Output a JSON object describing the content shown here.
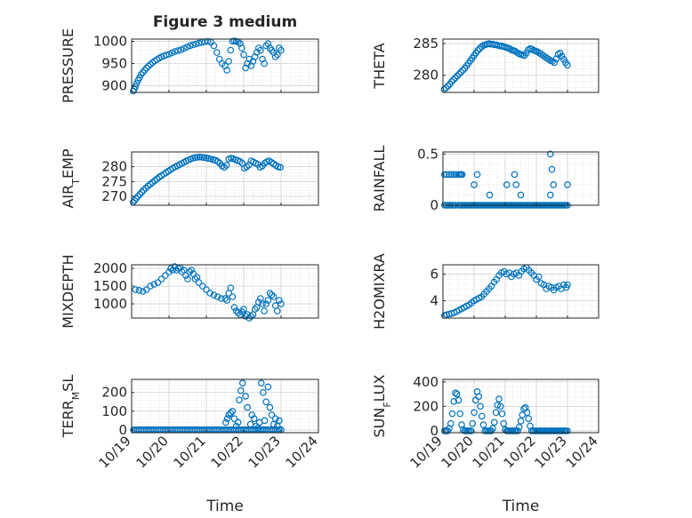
{
  "chart_data": [
    {
      "type": "scatter",
      "title": "Figure 3 medium",
      "ylabel": [
        "PRESSURE"
      ],
      "xlabel": "",
      "xlim": [
        0,
        5
      ],
      "ylim": [
        885,
        1005
      ],
      "yticks": [
        900,
        950,
        1000
      ],
      "xticks": [],
      "grid": true,
      "x": [
        0.04,
        0.07,
        0.1,
        0.13,
        0.17,
        0.21,
        0.25,
        0.3,
        0.35,
        0.4,
        0.45,
        0.5,
        0.56,
        0.62,
        0.68,
        0.74,
        0.8,
        0.86,
        0.92,
        1.0,
        1.08,
        1.16,
        1.24,
        1.32,
        1.4,
        1.48,
        1.56,
        1.64,
        1.72,
        1.8,
        1.88,
        1.96,
        2.04,
        2.12,
        2.2,
        2.28,
        2.35,
        2.42,
        2.5,
        2.55,
        2.6,
        2.65,
        2.7,
        2.75,
        2.8,
        2.85,
        2.9,
        2.95,
        3.0,
        3.05,
        3.1,
        3.15,
        3.2,
        3.25,
        3.3,
        3.35,
        3.4,
        3.45,
        3.5,
        3.55,
        3.6,
        3.65,
        3.7,
        3.75,
        3.8,
        3.85,
        3.9,
        3.95,
        4.0
      ],
      "y": [
        888,
        892,
        898,
        905,
        912,
        918,
        925,
        930,
        935,
        940,
        944,
        948,
        952,
        956,
        959,
        962,
        965,
        967,
        969,
        971,
        974,
        977,
        979,
        981,
        984,
        987,
        990,
        992,
        994,
        996,
        998,
        999,
        1000,
        998,
        990,
        975,
        960,
        950,
        945,
        935,
        955,
        980,
        1000,
        1001,
        1000,
        999,
        995,
        985,
        970,
        940,
        950,
        960,
        945,
        955,
        965,
        975,
        985,
        980,
        960,
        950,
        990,
        995,
        985,
        980,
        975,
        965,
        970,
        985,
        980
      ]
    },
    {
      "type": "scatter",
      "title": "",
      "ylabel": [
        "THETA"
      ],
      "xlabel": "",
      "xlim": [
        0,
        5
      ],
      "ylim": [
        277.3,
        285.7
      ],
      "yticks": [
        280,
        285
      ],
      "xticks": [],
      "grid": true,
      "x": [
        0.04,
        0.1,
        0.16,
        0.22,
        0.28,
        0.34,
        0.4,
        0.46,
        0.52,
        0.58,
        0.64,
        0.7,
        0.76,
        0.82,
        0.88,
        0.94,
        1.0,
        1.06,
        1.12,
        1.18,
        1.24,
        1.3,
        1.36,
        1.42,
        1.48,
        1.54,
        1.6,
        1.66,
        1.72,
        1.78,
        1.84,
        1.9,
        1.96,
        2.02,
        2.08,
        2.14,
        2.2,
        2.26,
        2.32,
        2.38,
        2.44,
        2.5,
        2.56,
        2.62,
        2.68,
        2.74,
        2.8,
        2.86,
        2.92,
        2.98,
        3.04,
        3.1,
        3.16,
        3.22,
        3.28,
        3.34,
        3.4,
        3.46,
        3.52,
        3.58,
        3.64,
        3.7,
        3.76,
        3.82,
        3.88,
        3.94,
        4.0
      ],
      "y": [
        277.8,
        278.0,
        278.3,
        278.6,
        279.0,
        279.3,
        279.6,
        279.9,
        280.2,
        280.5,
        280.8,
        281.1,
        281.5,
        281.9,
        282.3,
        282.7,
        283.1,
        283.5,
        283.9,
        284.2,
        284.5,
        284.7,
        284.8,
        284.9,
        285.0,
        284.9,
        284.9,
        284.8,
        284.8,
        284.7,
        284.6,
        284.6,
        284.5,
        284.4,
        284.3,
        284.2,
        284.0,
        283.9,
        283.8,
        283.6,
        283.4,
        283.3,
        283.2,
        283.1,
        283.5,
        284.0,
        284.2,
        284.1,
        283.9,
        283.8,
        283.7,
        283.5,
        283.3,
        283.1,
        282.9,
        282.7,
        282.5,
        282.3,
        282.2,
        282.0,
        282.6,
        283.3,
        283.5,
        283.0,
        282.5,
        282.0,
        281.6
      ]
    },
    {
      "type": "scatter",
      "title": "",
      "ylabel": [
        "AIR",
        "T",
        "EMP"
      ],
      "xlabel": "",
      "xlim": [
        0,
        5
      ],
      "ylim": [
        267,
        285
      ],
      "yticks": [
        270,
        275,
        280
      ],
      "xticks": [],
      "grid": true,
      "x": [
        0.04,
        0.08,
        0.12,
        0.17,
        0.22,
        0.27,
        0.32,
        0.38,
        0.44,
        0.5,
        0.56,
        0.62,
        0.68,
        0.74,
        0.8,
        0.86,
        0.92,
        0.98,
        1.04,
        1.1,
        1.16,
        1.22,
        1.28,
        1.34,
        1.4,
        1.46,
        1.52,
        1.58,
        1.64,
        1.7,
        1.76,
        1.82,
        1.88,
        1.94,
        2.0,
        2.06,
        2.12,
        2.18,
        2.24,
        2.3,
        2.36,
        2.42,
        2.48,
        2.54,
        2.6,
        2.66,
        2.72,
        2.78,
        2.84,
        2.9,
        2.96,
        3.02,
        3.08,
        3.14,
        3.2,
        3.26,
        3.32,
        3.38,
        3.44,
        3.5,
        3.56,
        3.62,
        3.68,
        3.74,
        3.8,
        3.86,
        3.92,
        3.98
      ],
      "y": [
        268.0,
        268.6,
        269.3,
        270.0,
        270.7,
        271.4,
        272.1,
        272.8,
        273.5,
        274.1,
        274.7,
        275.3,
        275.9,
        276.5,
        277.0,
        277.5,
        278.0,
        278.5,
        279.0,
        279.5,
        279.9,
        280.3,
        280.7,
        281.1,
        281.5,
        281.9,
        282.3,
        282.6,
        282.9,
        283.1,
        283.2,
        283.3,
        283.2,
        283.1,
        283.0,
        282.8,
        282.6,
        282.4,
        282.2,
        281.8,
        281.2,
        280.3,
        279.8,
        280.5,
        282.6,
        282.9,
        282.7,
        282.4,
        282.1,
        281.8,
        281.2,
        279.5,
        280.0,
        280.6,
        282.0,
        281.6,
        281.2,
        280.8,
        279.8,
        280.3,
        281.2,
        281.7,
        282.0,
        281.5,
        281.0,
        280.4,
        280.0,
        279.8
      ]
    },
    {
      "type": "scatter",
      "title": "",
      "ylabel": [
        "RAINFALL"
      ],
      "xlabel": "",
      "xlim": [
        0,
        5
      ],
      "ylim": [
        0,
        0.52
      ],
      "yticks": [
        0,
        0.5
      ],
      "xticks": [],
      "grid": true,
      "x": [
        0.05,
        0.1,
        0.15,
        0.2,
        0.25,
        0.3,
        0.35,
        0.4,
        0.5,
        0.55,
        0.6,
        0.65,
        0.7,
        0.75,
        0.8,
        0.85,
        0.9,
        0.95,
        1.0,
        1.05,
        1.1,
        1.15,
        1.2,
        1.25,
        1.3,
        1.35,
        1.4,
        1.45,
        1.5,
        1.55,
        1.6,
        1.65,
        1.7,
        1.75,
        1.8,
        1.85,
        1.9,
        1.95,
        2.0,
        2.05,
        2.1,
        2.15,
        2.2,
        2.25,
        2.3,
        2.35,
        2.4,
        2.45,
        2.5,
        2.55,
        2.6,
        2.65,
        2.7,
        2.75,
        2.8,
        2.85,
        2.9,
        2.95,
        3.0,
        3.05,
        3.1,
        3.15,
        3.2,
        3.25,
        3.3,
        3.35,
        3.4,
        3.45,
        3.5,
        3.55,
        3.6,
        3.65,
        3.7,
        3.75,
        3.8,
        3.85,
        3.9,
        3.95,
        4.0,
        0.05,
        0.12,
        0.2,
        0.28,
        0.35,
        0.42,
        0.5,
        0.55,
        0.58,
        0.62,
        1.0,
        1.1,
        1.5,
        2.05,
        2.3,
        2.35,
        2.5,
        3.45,
        3.45,
        3.5,
        3.55,
        4.0
      ],
      "y": [
        0,
        0,
        0,
        0,
        0,
        0,
        0,
        0,
        0,
        0,
        0,
        0,
        0,
        0,
        0,
        0,
        0,
        0,
        0,
        0,
        0,
        0,
        0,
        0,
        0,
        0,
        0,
        0,
        0,
        0,
        0,
        0,
        0,
        0,
        0,
        0,
        0,
        0,
        0,
        0,
        0,
        0,
        0,
        0,
        0,
        0,
        0,
        0,
        0,
        0,
        0,
        0,
        0,
        0,
        0,
        0,
        0,
        0,
        0,
        0,
        0,
        0,
        0,
        0,
        0,
        0,
        0,
        0,
        0,
        0,
        0,
        0,
        0,
        0,
        0,
        0,
        0,
        0,
        0,
        0.3,
        0.3,
        0.3,
        0.3,
        0.3,
        0.3,
        0.3,
        0.3,
        0.3,
        0.3,
        0.2,
        0.3,
        0.1,
        0.2,
        0.3,
        0.2,
        0.1,
        0.1,
        0.5,
        0.35,
        0.2,
        0.2
      ]
    },
    {
      "type": "scatter",
      "title": "",
      "ylabel": [
        "MIXDEPTH"
      ],
      "xlabel": "",
      "xlim": [
        0,
        5
      ],
      "ylim": [
        600,
        2100
      ],
      "yticks": [
        1000,
        1500,
        2000
      ],
      "xticks": [],
      "grid": true,
      "x": [
        0.1,
        0.2,
        0.3,
        0.4,
        0.5,
        0.6,
        0.7,
        0.8,
        0.9,
        1.0,
        1.05,
        1.1,
        1.15,
        1.2,
        1.25,
        1.3,
        1.35,
        1.4,
        1.45,
        1.5,
        1.55,
        1.6,
        1.65,
        1.7,
        1.75,
        1.8,
        1.9,
        2.0,
        2.1,
        2.2,
        2.3,
        2.4,
        2.5,
        2.55,
        2.6,
        2.65,
        2.7,
        2.75,
        2.8,
        2.85,
        2.9,
        2.95,
        3.0,
        3.05,
        3.1,
        3.15,
        3.2,
        3.25,
        3.3,
        3.35,
        3.4,
        3.45,
        3.5,
        3.55,
        3.6,
        3.65,
        3.7,
        3.75,
        3.8,
        3.85,
        3.9,
        3.95,
        4.0
      ],
      "y": [
        1400,
        1380,
        1350,
        1400,
        1500,
        1550,
        1600,
        1700,
        1800,
        1900,
        2000,
        1950,
        2050,
        1950,
        2000,
        2020,
        1900,
        1950,
        1800,
        1700,
        1900,
        1950,
        1850,
        1700,
        1750,
        1600,
        1500,
        1400,
        1300,
        1250,
        1200,
        1150,
        1150,
        1100,
        1300,
        1450,
        1200,
        900,
        800,
        750,
        700,
        780,
        850,
        650,
        700,
        600,
        650,
        700,
        850,
        900,
        1050,
        1150,
        1000,
        800,
        1000,
        1100,
        1300,
        1250,
        1200,
        950,
        800,
        1100,
        1000
      ]
    },
    {
      "type": "scatter",
      "title": "",
      "ylabel": [
        "H2OMIXRA"
      ],
      "xlabel": "",
      "xlim": [
        0,
        5
      ],
      "ylim": [
        2.7,
        6.7
      ],
      "yticks": [
        4,
        6
      ],
      "xticks": [],
      "grid": true,
      "x": [
        0.05,
        0.12,
        0.2,
        0.28,
        0.36,
        0.44,
        0.52,
        0.6,
        0.68,
        0.76,
        0.84,
        0.92,
        1.0,
        1.08,
        1.16,
        1.24,
        1.32,
        1.4,
        1.48,
        1.56,
        1.64,
        1.72,
        1.8,
        1.88,
        1.96,
        2.04,
        2.12,
        2.2,
        2.28,
        2.36,
        2.44,
        2.52,
        2.6,
        2.68,
        2.76,
        2.84,
        2.92,
        3.0,
        3.08,
        3.16,
        3.24,
        3.32,
        3.4,
        3.48,
        3.56,
        3.64,
        3.72,
        3.8,
        3.88,
        3.96,
        4.0
      ],
      "y": [
        2.9,
        2.95,
        3.0,
        3.05,
        3.1,
        3.2,
        3.3,
        3.4,
        3.5,
        3.6,
        3.7,
        3.85,
        4.0,
        4.1,
        4.2,
        4.3,
        4.5,
        4.7,
        4.9,
        5.1,
        5.4,
        5.6,
        5.9,
        6.1,
        6.2,
        6.0,
        6.1,
        5.8,
        6.0,
        6.1,
        5.9,
        6.2,
        6.4,
        6.5,
        6.3,
        6.1,
        5.9,
        5.6,
        5.8,
        5.3,
        5.2,
        4.9,
        5.1,
        5.0,
        4.8,
        5.0,
        5.1,
        4.9,
        5.2,
        5.0,
        5.2
      ]
    },
    {
      "type": "scatter",
      "title": "",
      "ylabel": [
        "TERR",
        "M",
        "SL"
      ],
      "xlabel": "Time",
      "xlim": [
        0,
        5
      ],
      "ylim": [
        -15,
        270
      ],
      "yticks": [
        0,
        100,
        200
      ],
      "xticks": [
        "10/19",
        "10/20",
        "10/21",
        "10/22",
        "10/23",
        "10/24"
      ],
      "grid": true,
      "x": [
        0.05,
        0.1,
        0.15,
        0.2,
        0.25,
        0.3,
        0.35,
        0.4,
        0.45,
        0.5,
        0.55,
        0.6,
        0.65,
        0.7,
        0.75,
        0.8,
        0.85,
        0.9,
        0.95,
        1.0,
        1.05,
        1.1,
        1.15,
        1.2,
        1.25,
        1.3,
        1.35,
        1.4,
        1.45,
        1.5,
        1.55,
        1.6,
        1.65,
        1.7,
        1.75,
        1.8,
        1.85,
        1.9,
        1.95,
        2.0,
        2.05,
        2.1,
        2.15,
        2.2,
        2.25,
        2.3,
        2.35,
        2.4,
        2.45,
        2.5,
        2.55,
        2.6,
        2.65,
        2.7,
        2.75,
        2.8,
        2.85,
        2.9,
        2.95,
        3.0,
        3.05,
        3.1,
        3.15,
        3.2,
        3.25,
        3.3,
        3.35,
        3.4,
        3.45,
        3.5,
        3.55,
        3.6,
        3.65,
        3.7,
        3.75,
        3.8,
        3.85,
        3.9,
        3.95,
        4.0,
        2.52,
        2.56,
        2.6,
        2.65,
        2.7,
        2.75,
        2.8,
        2.85,
        2.88,
        2.92,
        2.97,
        3.05,
        3.1,
        3.18,
        3.22,
        3.28,
        3.33,
        3.38,
        3.42,
        3.47,
        3.52,
        3.56,
        3.6,
        3.65,
        3.7,
        3.75,
        3.8,
        3.85,
        3.9,
        3.95
      ],
      "y": [
        0,
        0,
        0,
        0,
        0,
        0,
        0,
        0,
        0,
        0,
        0,
        0,
        0,
        0,
        0,
        0,
        0,
        0,
        0,
        0,
        0,
        0,
        0,
        0,
        0,
        0,
        0,
        0,
        0,
        0,
        0,
        0,
        0,
        0,
        0,
        0,
        0,
        0,
        0,
        0,
        0,
        0,
        0,
        0,
        0,
        0,
        0,
        0,
        0,
        0,
        0,
        0,
        0,
        0,
        0,
        0,
        0,
        0,
        0,
        0,
        0,
        0,
        0,
        0,
        0,
        0,
        0,
        0,
        0,
        0,
        0,
        0,
        0,
        0,
        0,
        0,
        0,
        0,
        0,
        0,
        40,
        60,
        80,
        90,
        100,
        60,
        20,
        40,
        160,
        210,
        250,
        180,
        120,
        30,
        80,
        60,
        20,
        10,
        40,
        250,
        200,
        50,
        150,
        230,
        120,
        80,
        30,
        60,
        20,
        50
      ]
    },
    {
      "type": "scatter",
      "title": "",
      "ylabel": [
        "SUN",
        "F",
        "LUX"
      ],
      "xlabel": "Time",
      "xlim": [
        0,
        5
      ],
      "ylim": [
        -15,
        420
      ],
      "yticks": [
        0,
        200,
        400
      ],
      "xticks": [
        "10/19",
        "10/20",
        "10/21",
        "10/22",
        "10/23",
        "10/24"
      ],
      "grid": true,
      "x": [
        0.05,
        0.1,
        0.15,
        0.2,
        0.25,
        0.3,
        0.35,
        0.4,
        0.45,
        0.5,
        0.55,
        0.6,
        0.65,
        0.7,
        0.75,
        0.8,
        0.85,
        0.9,
        0.95,
        1.0,
        1.05,
        1.1,
        1.15,
        1.2,
        1.25,
        1.3,
        1.35,
        1.4,
        1.45,
        1.5,
        1.55,
        1.6,
        1.65,
        1.7,
        1.75,
        1.8,
        1.85,
        1.9,
        1.95,
        2.0,
        2.05,
        2.1,
        2.15,
        2.2,
        2.25,
        2.3,
        2.35,
        2.4,
        2.45,
        2.5,
        2.55,
        2.6,
        2.65,
        2.7,
        2.75,
        2.8,
        2.85,
        2.9,
        2.95,
        3.0,
        3.05,
        3.1,
        3.15,
        3.2,
        3.25,
        3.3,
        3.35,
        3.4,
        3.45,
        3.5,
        3.55,
        3.6,
        3.65,
        3.7,
        3.75,
        3.8,
        3.85,
        3.9,
        3.95,
        4.0
      ],
      "y": [
        0,
        0,
        0,
        20,
        60,
        140,
        240,
        310,
        300,
        250,
        140,
        50,
        10,
        0,
        0,
        0,
        0,
        0,
        60,
        150,
        250,
        320,
        280,
        200,
        120,
        50,
        0,
        0,
        0,
        0,
        0,
        20,
        70,
        150,
        210,
        260,
        200,
        140,
        60,
        10,
        0,
        0,
        0,
        0,
        0,
        0,
        0,
        0,
        30,
        80,
        130,
        180,
        190,
        150,
        100,
        40,
        0,
        0,
        0,
        0,
        0,
        0,
        0,
        0,
        0,
        0,
        0,
        0,
        0,
        0,
        0,
        0,
        0,
        0,
        0,
        0,
        0,
        0,
        0,
        0
      ]
    }
  ]
}
